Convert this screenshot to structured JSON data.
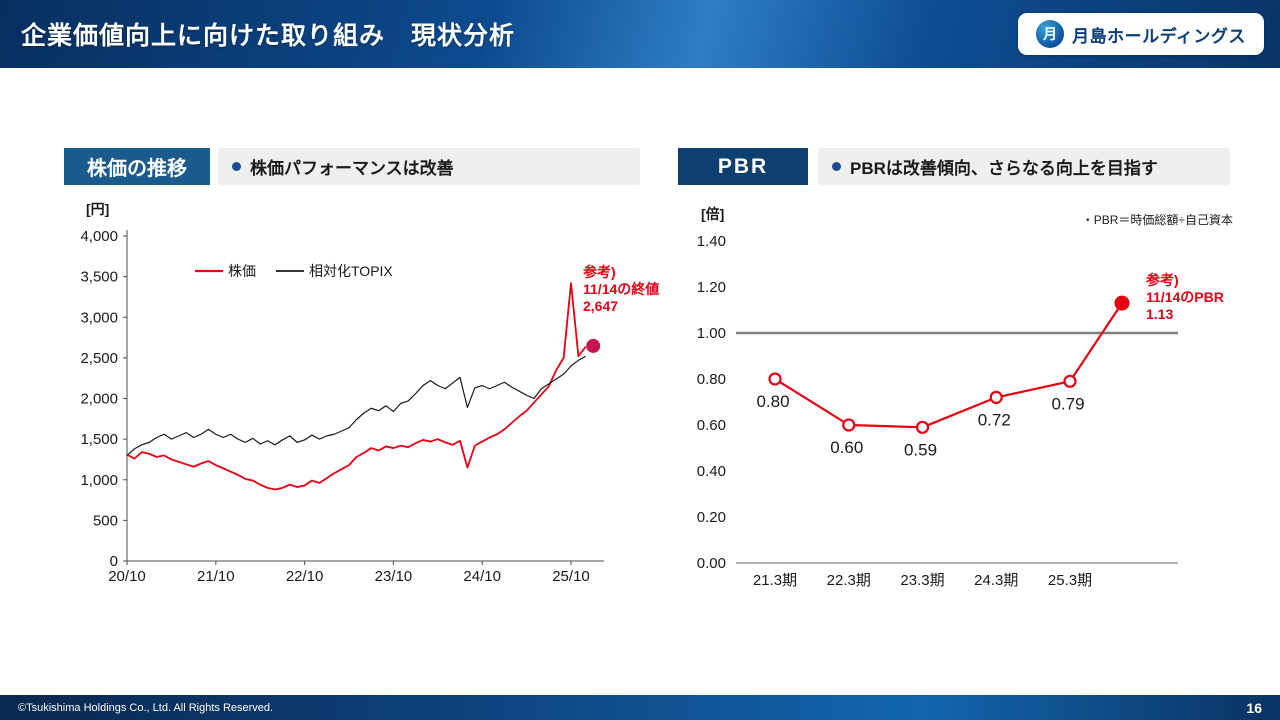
{
  "header": {
    "title": "企業価値向上に向けた取り組み　現状分析",
    "logo_text": "月島ホールディングス",
    "logo_mark": "月"
  },
  "footer": {
    "copyright": "©Tsukishima Holdings Co., Ltd. All Rights Reserved.",
    "page_number": "16"
  },
  "left_panel": {
    "badge": "株価の推移",
    "headline": "株価パフォーマンスは改善",
    "unit": "[円]",
    "annotation": {
      "line1": "参考)",
      "line2": "11/14の終値",
      "line3": "2,647"
    }
  },
  "right_panel": {
    "badge": "PBR",
    "headline": "PBRは改善傾向、さらなる向上を目指す",
    "unit": "[倍]",
    "note": "・PBR＝時価総額÷自己資本",
    "annotation": {
      "line1": "参考)",
      "line2": "11/14のPBR",
      "line3": "1.13"
    }
  },
  "chart_data": [
    {
      "type": "line",
      "title": "株価の推移",
      "ylabel": "円",
      "ylim": [
        0,
        4000
      ],
      "yticks": [
        [
          0,
          "0"
        ],
        [
          500,
          "500"
        ],
        [
          1000,
          "1,000"
        ],
        [
          1500,
          "1,500"
        ],
        [
          2000,
          "2,000"
        ],
        [
          2500,
          "2,500"
        ],
        [
          3000,
          "3,000"
        ],
        [
          3500,
          "3,500"
        ],
        [
          4000,
          "4,000"
        ]
      ],
      "xticks": [
        [
          0,
          "20/10"
        ],
        [
          12,
          "21/10"
        ],
        [
          24,
          "22/10"
        ],
        [
          36,
          "23/10"
        ],
        [
          48,
          "24/10"
        ],
        [
          60,
          "25/10"
        ]
      ],
      "x_unit": "monthly index from 2020/10",
      "grid": false,
      "legend_position": "top-left",
      "series": [
        {
          "name": "株価",
          "color": "#e60012",
          "width": 1.8,
          "values": [
            1310,
            1260,
            1340,
            1320,
            1280,
            1300,
            1250,
            1220,
            1190,
            1160,
            1200,
            1230,
            1180,
            1140,
            1100,
            1060,
            1010,
            990,
            940,
            900,
            880,
            900,
            940,
            910,
            930,
            990,
            960,
            1020,
            1080,
            1130,
            1180,
            1280,
            1330,
            1390,
            1360,
            1410,
            1390,
            1420,
            1400,
            1450,
            1490,
            1470,
            1500,
            1460,
            1430,
            1480,
            1150,
            1420,
            1470,
            1520,
            1560,
            1620,
            1700,
            1780,
            1850,
            1950,
            2050,
            2150,
            2350,
            2500,
            3420,
            2520,
            2640
          ]
        },
        {
          "name": "相対化TOPIX",
          "color": "#1a1a1a",
          "width": 1.2,
          "values": [
            1300,
            1380,
            1430,
            1460,
            1520,
            1560,
            1500,
            1540,
            1580,
            1520,
            1560,
            1620,
            1560,
            1520,
            1560,
            1500,
            1460,
            1510,
            1440,
            1480,
            1430,
            1490,
            1540,
            1460,
            1490,
            1550,
            1500,
            1540,
            1560,
            1600,
            1640,
            1740,
            1820,
            1880,
            1850,
            1910,
            1840,
            1940,
            1970,
            2060,
            2160,
            2220,
            2160,
            2120,
            2190,
            2260,
            1890,
            2130,
            2160,
            2120,
            2160,
            2200,
            2140,
            2090,
            2040,
            2000,
            2120,
            2180,
            2240,
            2300,
            2400,
            2470,
            2520
          ]
        }
      ],
      "reference_point": {
        "x_index": 63,
        "value": 2647,
        "color": "#c9134e",
        "label": "11/14の終値 2,647"
      }
    },
    {
      "type": "line",
      "title": "PBR",
      "ylabel": "倍",
      "ylim": [
        0,
        1.4
      ],
      "yticks": [
        [
          0,
          "0.00"
        ],
        [
          0.2,
          "0.20"
        ],
        [
          0.4,
          "0.40"
        ],
        [
          0.6,
          "0.60"
        ],
        [
          0.8,
          "0.80"
        ],
        [
          1.0,
          "1.00"
        ],
        [
          1.2,
          "1.20"
        ],
        [
          1.4,
          "1.40"
        ]
      ],
      "categories": [
        "21.3期",
        "22.3期",
        "23.3期",
        "24.3期",
        "25.3期"
      ],
      "values": [
        0.8,
        0.6,
        0.59,
        0.72,
        0.79
      ],
      "value_labels": [
        "0.80",
        "0.60",
        "0.59",
        "0.72",
        "0.79"
      ],
      "line_color": "#e60012",
      "grid": false,
      "reference_line": 1.0,
      "reference_point": {
        "value": 1.13,
        "color": "#e60012",
        "label": "11/14のPBR 1.13"
      }
    }
  ]
}
